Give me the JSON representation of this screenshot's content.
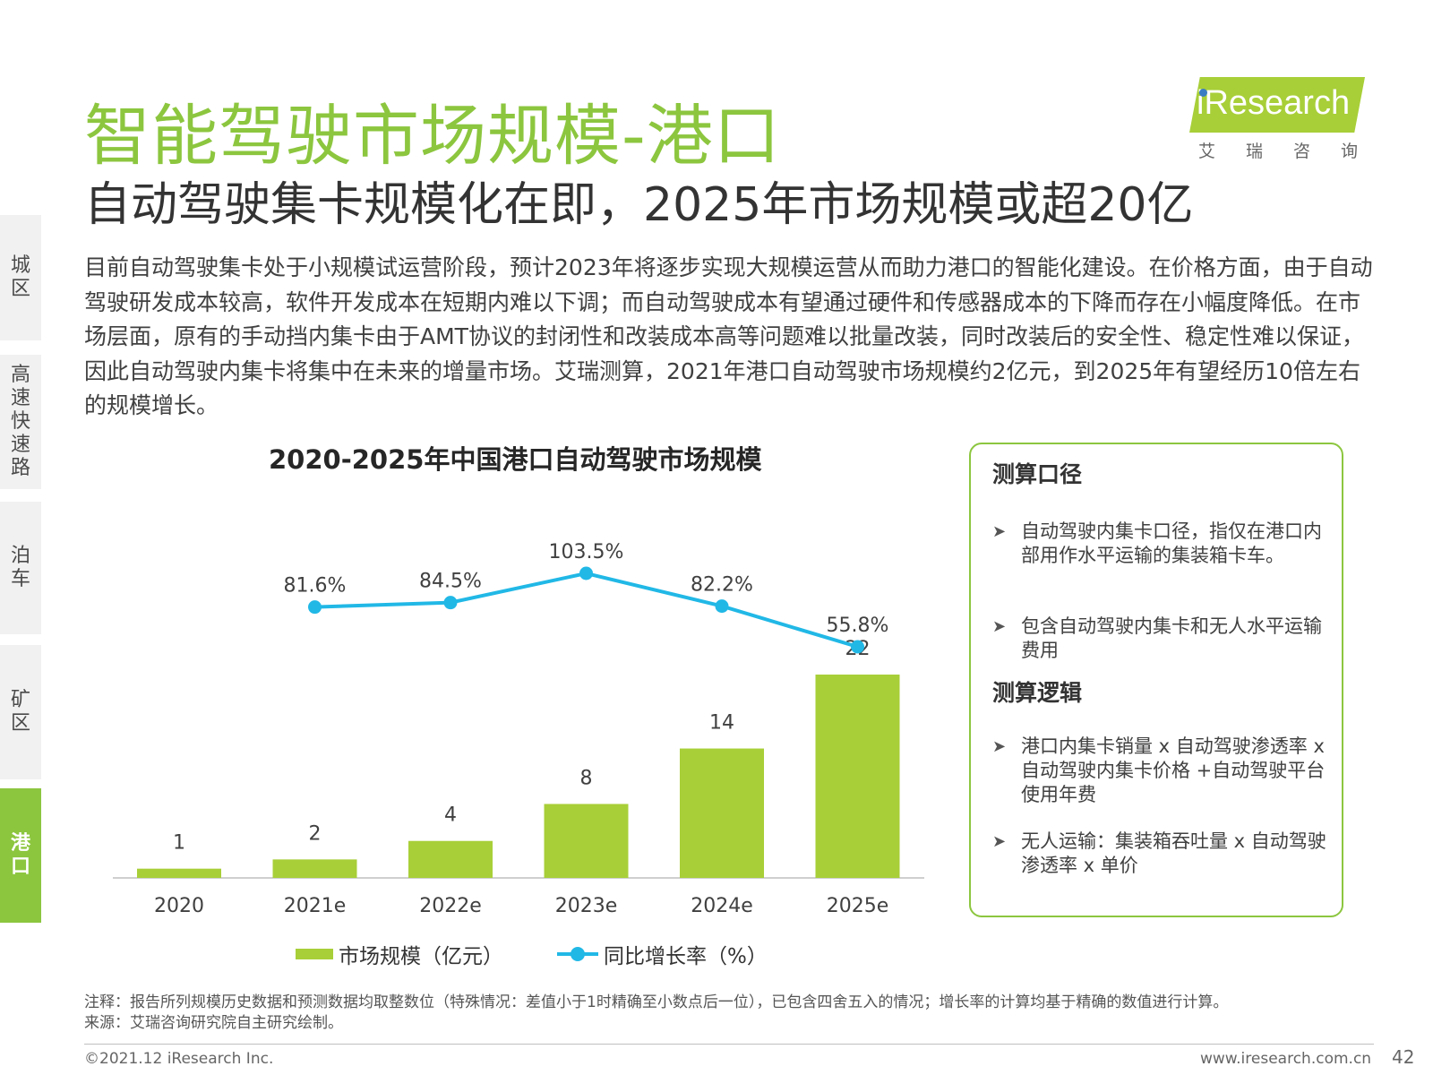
{
  "nav": {
    "tabs": [
      {
        "label": "城区",
        "active": false
      },
      {
        "label": "高速快速路",
        "active": false
      },
      {
        "label": "泊车",
        "active": false
      },
      {
        "label": "矿区",
        "active": false
      },
      {
        "label": "港口",
        "active": true
      }
    ]
  },
  "header": {
    "title": "智能驾驶市场规模-港口",
    "subtitle": "自动驾驶集卡规模化在即，2025年市场规模或超20亿"
  },
  "logo": {
    "word": "iResearch",
    "cn": "艾瑞咨询",
    "colors": {
      "band": "#a8cf38",
      "dot": "#3a7cc4"
    }
  },
  "intro": "目前自动驾驶集卡处于小规模试运营阶段，预计2023年将逐步实现大规模运营从而助力港口的智能化建设。在价格方面，由于自动驾驶研发成本较高，软件开发成本在短期内难以下调；而自动驾驶成本有望通过硬件和传感器成本的下降而存在小幅度降低。在市场层面，原有的手动挡内集卡由于AMT协议的封闭性和改装成本高等问题难以批量改装，同时改装后的安全性、稳定性难以保证，因此自动驾驶内集卡将集中在未来的增量市场。艾瑞测算，2021年港口自动驾驶市场规模约2亿元，到2025年有望经历10倍左右的规模增长。",
  "chart_data": {
    "type": "bar",
    "title": "2020-2025年中国港口自动驾驶市场规模",
    "categories": [
      "2020",
      "2021e",
      "2022e",
      "2023e",
      "2024e",
      "2025e"
    ],
    "series": [
      {
        "name": "市场规模（亿元）",
        "type": "bar",
        "values": [
          1,
          2,
          4,
          8,
          14,
          22
        ],
        "labels": [
          "1",
          "2",
          "4",
          "8",
          "14",
          "22"
        ],
        "color": "#a8cf38"
      },
      {
        "name": "同比增长率（%）",
        "type": "line",
        "values": [
          null,
          81.6,
          84.5,
          103.5,
          82.2,
          55.8
        ],
        "labels": [
          "",
          "81.6%",
          "84.5%",
          "103.5%",
          "82.2%",
          "55.8%"
        ],
        "color": "#21b8e6"
      }
    ],
    "ylim": [
      0,
      22
    ],
    "line_ylim": [
      55.8,
      103.5
    ],
    "legend_position": "bottom",
    "grid": false
  },
  "box": {
    "heading1": "测算口径",
    "items1": [
      "自动驾驶内集卡口径，指仅在港口内部用作水平运输的集装箱卡车。",
      "包含自动驾驶内集卡和无人水平运输费用"
    ],
    "heading2": "测算逻辑",
    "items2": [
      "港口内集卡销量 x 自动驾驶渗透率 x 自动驾驶内集卡价格 +自动驾驶平台使用年费",
      "无人运输：集装箱吞吐量 x 自动驾驶渗透率 x 单价"
    ],
    "accent": "#8cc63f"
  },
  "footer": {
    "note": "注释：报告所列规模历史数据和预测数据均取整数位（特殊情况：差值小于1时精确至小数点后一位），已包含四舍五入的情况；增长率的计算均基于精确的数值进行计算。",
    "source": "来源：艾瑞咨询研究院自主研究绘制。",
    "copyright": "©2021.12 iResearch Inc.",
    "website": "www.iresearch.com.cn",
    "page": "42"
  }
}
